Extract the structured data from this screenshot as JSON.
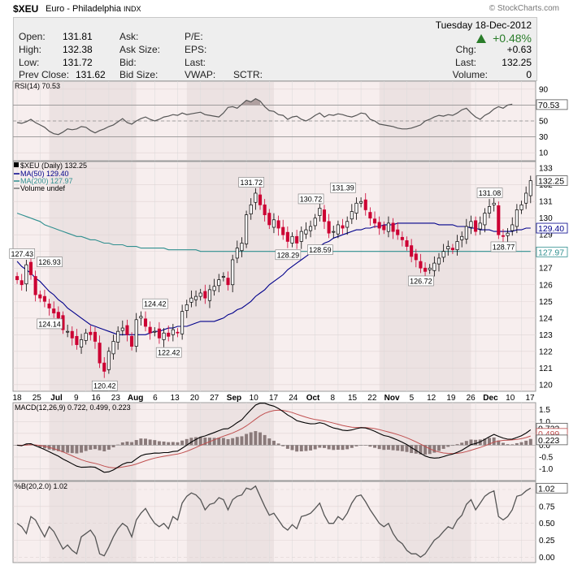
{
  "header": {
    "symbol": "$XEU",
    "name": "Euro - Philadelphia",
    "exchange": "INDX",
    "brand": "© StockCharts.com"
  },
  "quote": {
    "date": "Tuesday 18-Dec-2012",
    "change_pct": "+0.48%",
    "open_label": "Open:",
    "open": "131.81",
    "high_label": "High:",
    "high": "132.38",
    "low_label": "Low:",
    "low": "131.72",
    "prev_label": "Prev Close:",
    "prev": "131.62",
    "ask_label": "Ask:",
    "asksize_label": "Ask Size:",
    "bid_label": "Bid:",
    "bidsize_label": "Bid Size:",
    "pe_label": "P/E:",
    "eps_label": "EPS:",
    "last_label": "Last:",
    "vwap_label": "VWAP:",
    "sctr_label": "SCTR:",
    "chg_label": "Chg:",
    "chg": "+0.63",
    "last2_label": "Last:",
    "last": "132.25",
    "volume_label": "Volume:",
    "volume": "0"
  },
  "colors": {
    "up": "#ffffff",
    "down": "#cc0033",
    "ma50": "#00008b",
    "ma200": "#2f8f8f",
    "line": "#555555",
    "bg": "#f7eeee",
    "band": "#ece2e2"
  },
  "chart_data": [
    {
      "type": "line",
      "title": "RSI(14) 70.53",
      "y_ticks": [
        10,
        30,
        50,
        70,
        90
      ],
      "ylim": [
        0,
        100
      ],
      "last": "70.53",
      "levels": [
        30,
        50,
        70
      ],
      "values": [
        48,
        47,
        49,
        52,
        48,
        45,
        42,
        37,
        34,
        33,
        36,
        40,
        39,
        40,
        43,
        42,
        38,
        35,
        38,
        40,
        43,
        45,
        49,
        53,
        48,
        46,
        50,
        53,
        55,
        52,
        50,
        52,
        55,
        56,
        58,
        57,
        60,
        58,
        59,
        60,
        61,
        58,
        57,
        56,
        55,
        60,
        67,
        68,
        66,
        71,
        76,
        74,
        78,
        75,
        68,
        63,
        62,
        58,
        57,
        52,
        55,
        56,
        52,
        50,
        53,
        57,
        60,
        55,
        58,
        57,
        59,
        58,
        56,
        55,
        57,
        60,
        59,
        52,
        50,
        46,
        45,
        44,
        43,
        41,
        40,
        40,
        41,
        43,
        45,
        50,
        52,
        55,
        57,
        56,
        58,
        57,
        60,
        64,
        66,
        60,
        55,
        52,
        57,
        60,
        65,
        68,
        66,
        70,
        71
      ]
    },
    {
      "type": "candlestick",
      "title": "$XEU (Daily) 132.25",
      "legend": [
        {
          "name": "MA(50) 129.40",
          "color": "#00008b"
        },
        {
          "name": "MA(200) 127.97",
          "color": "#2f8f8f"
        },
        {
          "name": "Volume undef",
          "color": "#777777"
        }
      ],
      "y_ticks": [
        120,
        121,
        122,
        123,
        124,
        125,
        126,
        127,
        128,
        129,
        130,
        131,
        132,
        133
      ],
      "ylim": [
        119.6,
        133.4
      ],
      "x_labels": [
        "18",
        "25",
        "Jul",
        "9",
        "16",
        "23",
        "Aug",
        "6",
        "13",
        "20",
        "27",
        "Sep",
        "10",
        "17",
        "24",
        "Oct",
        "8",
        "15",
        "22",
        "Nov",
        "5",
        "12",
        "19",
        "26",
        "Dec",
        "10",
        "17"
      ],
      "last_price": "132.25",
      "ma50_last": "129.40",
      "ma200_last": "127.97",
      "annotations": [
        "127.43",
        "126.93",
        "124.14",
        "120.42",
        "124.42",
        "122.42",
        "131.72",
        "130.72",
        "131.39",
        "128.29",
        "128.59",
        "126.72",
        "131.08",
        "128.77"
      ],
      "close": [
        126.3,
        126.0,
        127.2,
        126.6,
        125.4,
        125.2,
        125.0,
        124.6,
        124.3,
        124.0,
        123.3,
        123.2,
        122.8,
        122.4,
        122.7,
        123.1,
        123.0,
        122.6,
        121.3,
        120.8,
        122.0,
        122.6,
        123.2,
        123.4,
        123.0,
        122.3,
        123.9,
        124.1,
        123.5,
        123.1,
        123.2,
        122.8,
        123.1,
        122.9,
        123.3,
        123.1,
        124.4,
        124.8,
        125.2,
        125.3,
        125.5,
        125.2,
        125.7,
        125.9,
        126.3,
        126.5,
        126.0,
        127.5,
        128.2,
        128.5,
        130.2,
        130.8,
        131.5,
        130.8,
        130.2,
        129.6,
        129.9,
        129.4,
        129.0,
        128.6,
        128.9,
        128.5,
        129.2,
        129.3,
        129.5,
        130.0,
        130.6,
        129.8,
        129.1,
        129.2,
        129.6,
        129.4,
        129.8,
        130.4,
        130.9,
        131.0,
        130.5,
        130.0,
        129.7,
        129.4,
        129.3,
        129.7,
        129.2,
        129.0,
        128.7,
        128.3,
        127.7,
        127.5,
        127.0,
        126.8,
        127.0,
        127.3,
        127.6,
        128.0,
        128.3,
        128.1,
        128.6,
        128.9,
        129.5,
        129.8,
        129.2,
        129.7,
        130.3,
        130.7,
        130.9,
        129.0,
        128.9,
        129.1,
        129.6,
        130.5,
        130.8,
        131.5,
        132.25
      ],
      "ma50": [
        127.4,
        127.1,
        126.9,
        126.7,
        126.4,
        126.2,
        125.9,
        125.6,
        125.4,
        125.1,
        124.9,
        124.6,
        124.4,
        124.2,
        124.0,
        123.8,
        123.6,
        123.5,
        123.4,
        123.3,
        123.2,
        123.1,
        123.0,
        123.0,
        123.0,
        123.0,
        123.0,
        123.0,
        123.0,
        123.1,
        123.2,
        123.2,
        123.3,
        123.4,
        123.4,
        123.5,
        123.5,
        123.5,
        123.6,
        123.7,
        123.8,
        123.8,
        123.8,
        123.8,
        123.9,
        124.0,
        124.2,
        124.3,
        124.5,
        124.6,
        124.8,
        125.0,
        125.3,
        125.5,
        125.7,
        126.0,
        126.2,
        126.4,
        126.6,
        126.9,
        127.1,
        127.3,
        127.5,
        127.7,
        127.9,
        128.1,
        128.3,
        128.5,
        128.6,
        128.8,
        128.9,
        129.0,
        129.1,
        129.2,
        129.3,
        129.3,
        129.4,
        129.4,
        129.5,
        129.5,
        129.6,
        129.6,
        129.6,
        129.7,
        129.7,
        129.7,
        129.7,
        129.7,
        129.7,
        129.7,
        129.7,
        129.7,
        129.6,
        129.6,
        129.6,
        129.6,
        129.5,
        129.5,
        129.5,
        129.4,
        129.4,
        129.3,
        129.3,
        129.3,
        129.2,
        129.2,
        129.2,
        129.2,
        129.2,
        129.3,
        129.3,
        129.4,
        129.4
      ],
      "ma200": [
        130.3,
        130.2,
        130.1,
        130.0,
        129.9,
        129.8,
        129.6,
        129.5,
        129.4,
        129.3,
        129.2,
        129.1,
        129.0,
        128.9,
        128.9,
        128.8,
        128.7,
        128.7,
        128.6,
        128.5,
        128.5,
        128.4,
        128.4,
        128.4,
        128.3,
        128.3,
        128.3,
        128.2,
        128.2,
        128.2,
        128.2,
        128.2,
        128.2,
        128.1,
        128.1,
        128.1,
        128.1,
        128.1,
        128.1,
        128.1,
        128.0,
        128.0,
        128.0,
        128.0,
        128.0,
        128.0,
        128.0,
        128.0,
        128.0,
        128.0,
        128.0,
        128.0,
        128.0,
        128.0,
        128.0,
        128.0,
        128.0,
        128.0,
        128.0,
        128.0,
        128.0,
        128.0,
        128.0,
        128.0,
        128.0,
        128.0,
        128.0,
        128.0,
        128.0,
        128.0,
        128.0,
        128.0,
        128.0,
        128.0,
        128.0,
        128.0,
        128.0,
        128.0,
        128.0,
        128.0,
        128.0,
        128.0,
        128.0,
        128.0,
        128.0,
        128.0,
        128.0,
        128.0,
        128.0,
        128.0,
        128.0,
        128.0,
        128.0,
        128.0,
        128.0,
        128.0,
        128.0,
        128.0,
        128.0,
        128.0,
        128.0,
        128.0,
        128.0,
        128.0,
        128.0,
        128.0,
        128.0,
        128.0,
        128.0,
        128.0,
        128.0,
        128.0,
        128.0
      ]
    },
    {
      "type": "line",
      "title": "MACD(12,26,9) 0.722, 0.499, 0.223",
      "y_ticks": [
        "1.5",
        "1.0",
        "0.5",
        "0.0",
        "-0.5",
        "-1.0"
      ],
      "ylim": [
        -1.5,
        1.8
      ],
      "last_labels": [
        "0.722",
        "0.499",
        "0.223"
      ]
    },
    {
      "type": "line",
      "title": "%B(20,2.0) 1.02",
      "y_ticks": [
        "1.00",
        "0.75",
        "0.50",
        "0.25",
        "0.00"
      ],
      "ylim": [
        -0.08,
        1.12
      ],
      "last": "1.02",
      "values": [
        0.5,
        0.45,
        0.35,
        0.6,
        0.55,
        0.42,
        0.3,
        0.45,
        0.38,
        0.25,
        0.12,
        0.18,
        0.1,
        0.05,
        0.3,
        0.35,
        0.4,
        0.3,
        0.05,
        0.02,
        0.15,
        0.3,
        0.42,
        0.5,
        0.45,
        0.3,
        0.55,
        0.65,
        0.72,
        0.6,
        0.5,
        0.45,
        0.5,
        0.42,
        0.6,
        0.55,
        0.8,
        0.9,
        0.95,
        0.92,
        0.85,
        0.7,
        0.78,
        0.8,
        0.88,
        0.85,
        0.7,
        0.85,
        0.9,
        0.92,
        1.02,
        1.0,
        1.05,
        0.9,
        0.75,
        0.62,
        0.65,
        0.55,
        0.45,
        0.4,
        0.48,
        0.42,
        0.6,
        0.62,
        0.65,
        0.72,
        0.8,
        0.62,
        0.5,
        0.5,
        0.6,
        0.55,
        0.65,
        0.8,
        0.9,
        0.92,
        0.82,
        0.7,
        0.6,
        0.5,
        0.45,
        0.5,
        0.35,
        0.25,
        0.2,
        0.1,
        0.05,
        0.05,
        0.0,
        0.05,
        0.15,
        0.25,
        0.3,
        0.38,
        0.45,
        0.42,
        0.55,
        0.62,
        0.78,
        0.85,
        0.7,
        0.8,
        0.9,
        0.95,
        0.98,
        0.6,
        0.55,
        0.6,
        0.7,
        0.9,
        0.92,
        0.98,
        1.02
      ]
    }
  ]
}
